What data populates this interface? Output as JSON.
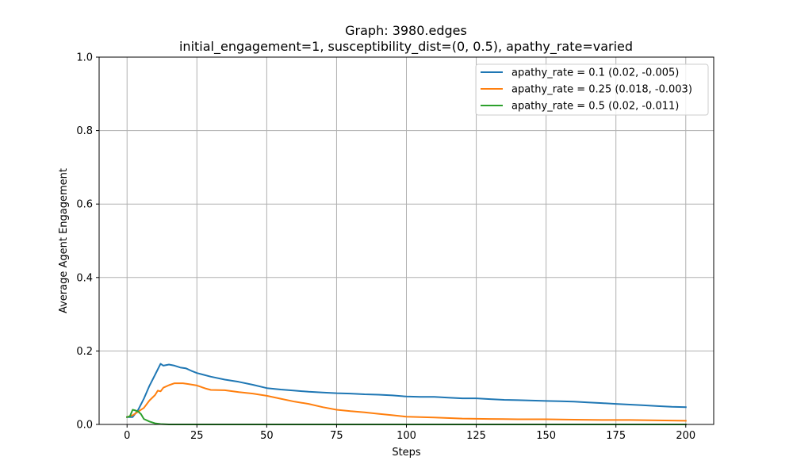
{
  "chart_data": {
    "type": "line",
    "title": "Graph: 3980.edges",
    "subtitle": "initial_engagement=1, susceptibility_dist=(0, 0.5), apathy_rate=varied",
    "xlabel": "Steps",
    "ylabel": "Average Agent Engagement",
    "xlim": [
      -10,
      210
    ],
    "ylim": [
      0,
      1.0
    ],
    "xticks": [
      0,
      25,
      50,
      75,
      100,
      125,
      150,
      175,
      200
    ],
    "xtick_labels": [
      "0",
      "25",
      "50",
      "75",
      "100",
      "125",
      "150",
      "175",
      "200"
    ],
    "yticks": [
      0,
      0.2,
      0.4,
      0.6,
      0.8,
      1.0
    ],
    "ytick_labels": [
      "0.0",
      "0.2",
      "0.4",
      "0.6",
      "0.8",
      "1.0"
    ],
    "grid": true,
    "legend_position": "top-right",
    "series": [
      {
        "name": "apathy_rate = 0.1 (0.02, -0.005)",
        "color": "#1f77b4",
        "points": [
          [
            0,
            0.02
          ],
          [
            2,
            0.02
          ],
          [
            4,
            0.04
          ],
          [
            6,
            0.07
          ],
          [
            8,
            0.105
          ],
          [
            10,
            0.135
          ],
          [
            12,
            0.165
          ],
          [
            13,
            0.16
          ],
          [
            15,
            0.163
          ],
          [
            17,
            0.16
          ],
          [
            19,
            0.155
          ],
          [
            21,
            0.153
          ],
          [
            23,
            0.146
          ],
          [
            25,
            0.14
          ],
          [
            30,
            0.13
          ],
          [
            35,
            0.122
          ],
          [
            40,
            0.116
          ],
          [
            45,
            0.108
          ],
          [
            50,
            0.099
          ],
          [
            55,
            0.095
          ],
          [
            60,
            0.092
          ],
          [
            65,
            0.089
          ],
          [
            70,
            0.087
          ],
          [
            75,
            0.085
          ],
          [
            80,
            0.084
          ],
          [
            85,
            0.082
          ],
          [
            90,
            0.081
          ],
          [
            95,
            0.079
          ],
          [
            100,
            0.076
          ],
          [
            105,
            0.075
          ],
          [
            110,
            0.075
          ],
          [
            115,
            0.073
          ],
          [
            120,
            0.071
          ],
          [
            125,
            0.071
          ],
          [
            130,
            0.069
          ],
          [
            135,
            0.067
          ],
          [
            140,
            0.066
          ],
          [
            145,
            0.065
          ],
          [
            150,
            0.064
          ],
          [
            155,
            0.063
          ],
          [
            160,
            0.062
          ],
          [
            165,
            0.06
          ],
          [
            170,
            0.058
          ],
          [
            175,
            0.056
          ],
          [
            180,
            0.054
          ],
          [
            185,
            0.052
          ],
          [
            190,
            0.05
          ],
          [
            195,
            0.048
          ],
          [
            200,
            0.047
          ]
        ]
      },
      {
        "name": "apathy_rate = 0.25 (0.018, -0.003)",
        "color": "#ff7f0e",
        "points": [
          [
            0,
            0.02
          ],
          [
            2,
            0.025
          ],
          [
            4,
            0.035
          ],
          [
            6,
            0.045
          ],
          [
            8,
            0.065
          ],
          [
            10,
            0.08
          ],
          [
            11,
            0.092
          ],
          [
            12,
            0.09
          ],
          [
            13,
            0.1
          ],
          [
            15,
            0.107
          ],
          [
            17,
            0.112
          ],
          [
            20,
            0.112
          ],
          [
            22,
            0.11
          ],
          [
            25,
            0.106
          ],
          [
            28,
            0.098
          ],
          [
            30,
            0.094
          ],
          [
            35,
            0.093
          ],
          [
            40,
            0.088
          ],
          [
            45,
            0.084
          ],
          [
            50,
            0.078
          ],
          [
            55,
            0.07
          ],
          [
            60,
            0.062
          ],
          [
            65,
            0.056
          ],
          [
            70,
            0.047
          ],
          [
            75,
            0.04
          ],
          [
            80,
            0.036
          ],
          [
            85,
            0.033
          ],
          [
            90,
            0.029
          ],
          [
            95,
            0.025
          ],
          [
            100,
            0.021
          ],
          [
            110,
            0.019
          ],
          [
            120,
            0.016
          ],
          [
            130,
            0.015
          ],
          [
            140,
            0.014
          ],
          [
            150,
            0.014
          ],
          [
            160,
            0.013
          ],
          [
            170,
            0.012
          ],
          [
            180,
            0.012
          ],
          [
            190,
            0.011
          ],
          [
            200,
            0.01
          ]
        ]
      },
      {
        "name": "apathy_rate = 0.5 (0.02, -0.011)",
        "color": "#2ca02c",
        "points": [
          [
            0,
            0.02
          ],
          [
            1,
            0.022
          ],
          [
            2,
            0.04
          ],
          [
            3,
            0.038
          ],
          [
            4,
            0.035
          ],
          [
            5,
            0.028
          ],
          [
            6,
            0.015
          ],
          [
            8,
            0.008
          ],
          [
            10,
            0.003
          ],
          [
            12,
            0.001
          ],
          [
            15,
            0.0
          ],
          [
            25,
            0.0
          ],
          [
            50,
            0.0
          ],
          [
            100,
            0.0
          ],
          [
            150,
            0.0
          ],
          [
            200,
            0.0
          ]
        ]
      }
    ]
  }
}
